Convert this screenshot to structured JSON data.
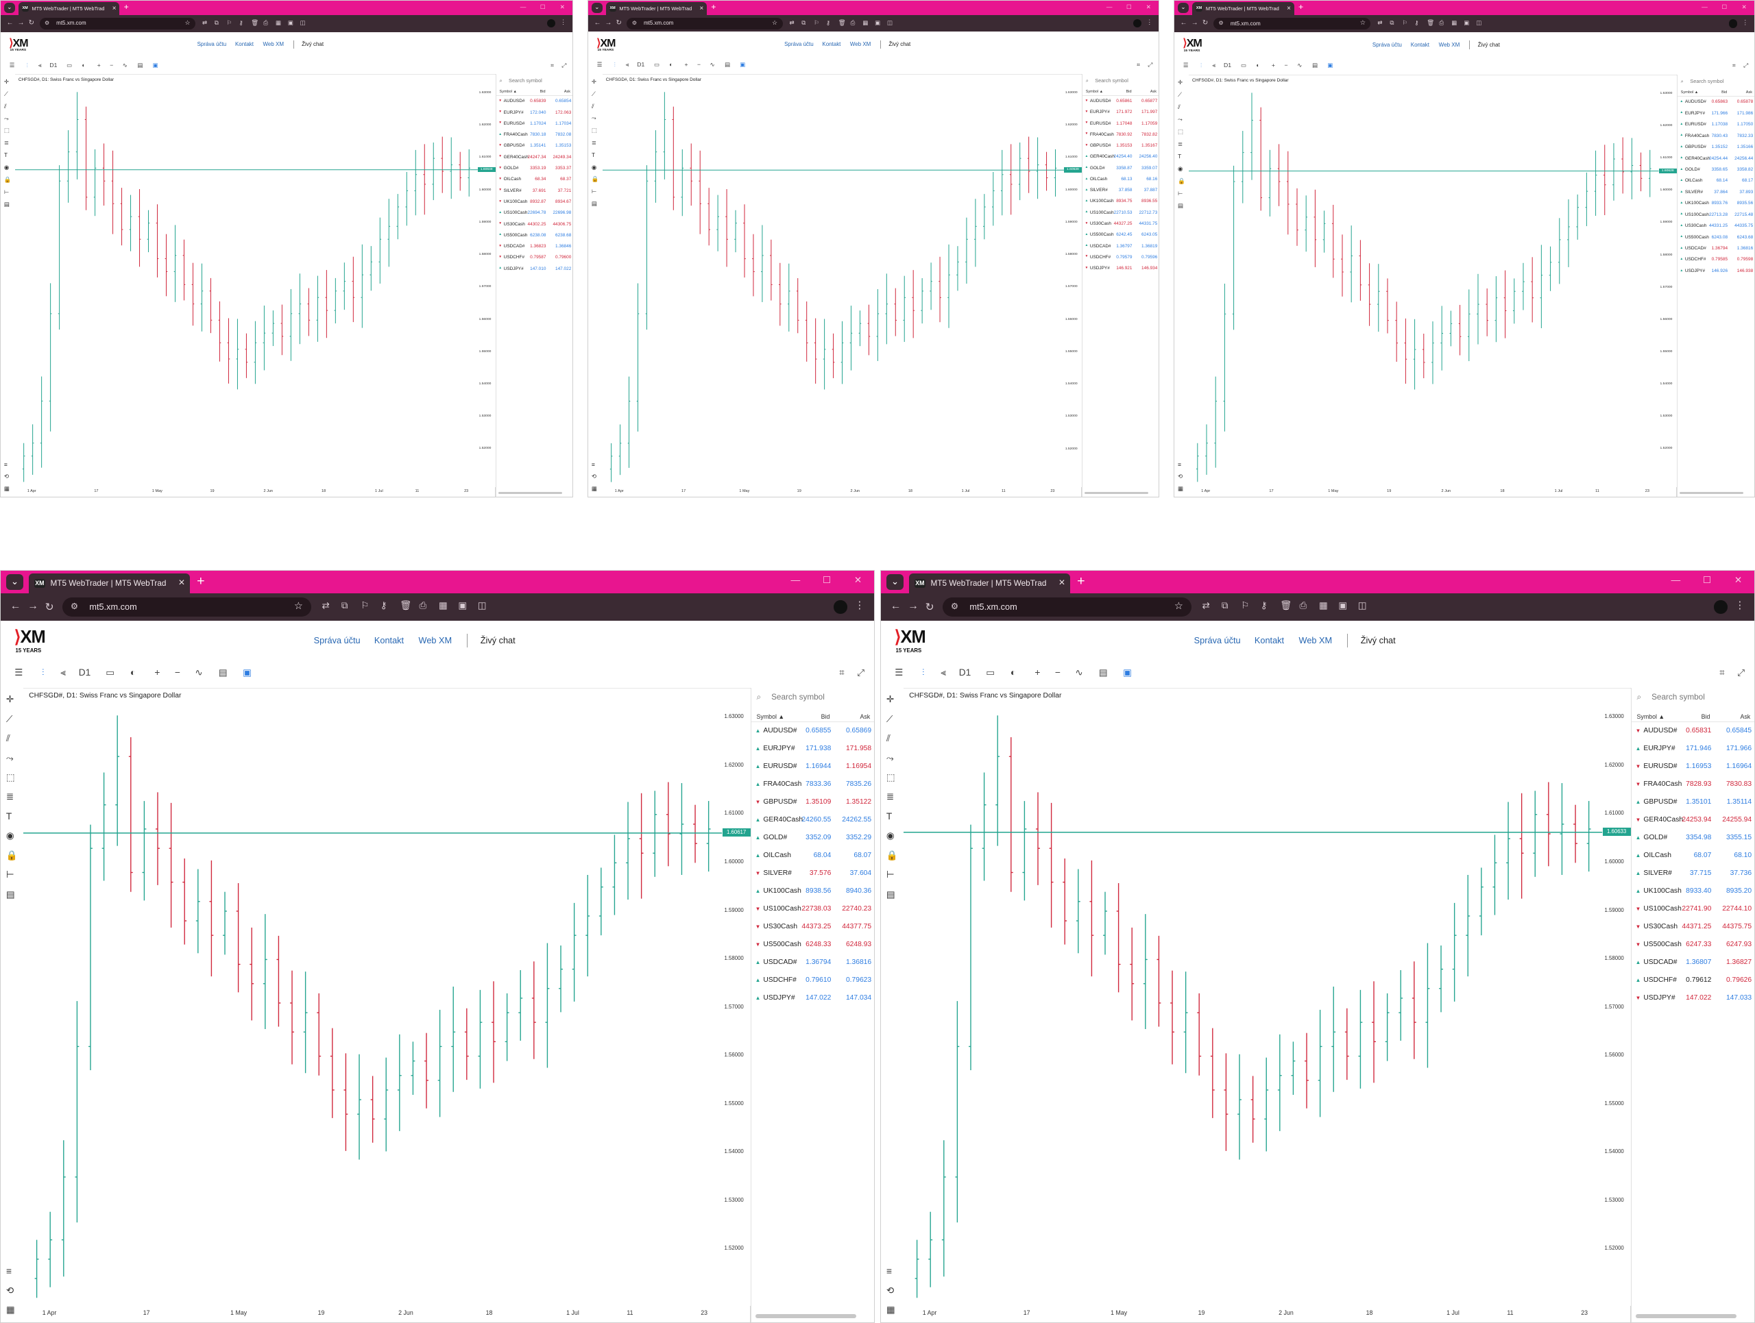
{
  "browser": {
    "tab_title": "MT5 WebTrader | MT5 WebTrader",
    "tab_title_short": "MT5 WebTrader | MT5 WebTrad",
    "favicon_text": "XM",
    "new_tab": "+",
    "url": "mt5.xm.com",
    "url_small": "mt5.xm.com",
    "close_tab": "×",
    "caret": "⌄"
  },
  "site": {
    "logo": "XM",
    "logo_sub": "15 YEARS",
    "links": [
      "Správa účtu",
      "Kontakt",
      "Web XM"
    ],
    "chat": "Živý chat"
  },
  "toolbar": {
    "timeframe": "D1",
    "plus": "+",
    "minus": "−"
  },
  "chart": {
    "title": "CHFSGD#, D1: Swiss Franc vs Singapore Dollar",
    "price_ticks": [
      "1.63000",
      "1.62000",
      "1.61000",
      "1.60000",
      "1.59000",
      "1.58000",
      "1.57000",
      "1.56000",
      "1.55000",
      "1.54000",
      "1.53000",
      "1.52000"
    ],
    "date_ticks": [
      "1 Apr",
      "17",
      "1 May",
      "19",
      "2 Jun",
      "18",
      "1 Jul",
      "11",
      "23"
    ],
    "line_color": "#23a48f",
    "up_color": "#23a48f",
    "down_color": "#d0263b"
  },
  "watchlist_header": {
    "search_placeholder": "Search symbol",
    "col_symbol": "Symbol ▲",
    "col_bid": "Bid",
    "col_ask": "Ask"
  },
  "panels": [
    {
      "current_price": "1.60649",
      "rows": [
        {
          "dir": "down",
          "symbol": "AUDUSD#",
          "bid": "0.65839",
          "ask": "0.65854",
          "bidc": "down",
          "askc": "up"
        },
        {
          "dir": "down",
          "symbol": "EURJPY#",
          "bid": "172.040",
          "ask": "172.063",
          "bidc": "up",
          "askc": "down"
        },
        {
          "dir": "down",
          "symbol": "EURUSD#",
          "bid": "1.17024",
          "ask": "1.17034",
          "bidc": "up",
          "askc": "up"
        },
        {
          "dir": "up",
          "symbol": "FRA40Cash",
          "bid": "7830.18",
          "ask": "7832.08",
          "bidc": "up",
          "askc": "up"
        },
        {
          "dir": "down",
          "symbol": "GBPUSD#",
          "bid": "1.35141",
          "ask": "1.35153",
          "bidc": "up",
          "askc": "up"
        },
        {
          "dir": "down",
          "symbol": "GER40Cash",
          "bid": "24247.34",
          "ask": "24249.34",
          "bidc": "down",
          "askc": "down"
        },
        {
          "dir": "down",
          "symbol": "GOLD#",
          "bid": "3353.19",
          "ask": "3353.37",
          "bidc": "down",
          "askc": "down"
        },
        {
          "dir": "down",
          "symbol": "OILCash",
          "bid": "68.34",
          "ask": "68.37",
          "bidc": "down",
          "askc": "down"
        },
        {
          "dir": "down",
          "symbol": "SILVER#",
          "bid": "37.691",
          "ask": "37.721",
          "bidc": "down",
          "askc": "down"
        },
        {
          "dir": "down",
          "symbol": "UK100Cash",
          "bid": "8932.87",
          "ask": "8934.67",
          "bidc": "down",
          "askc": "down"
        },
        {
          "dir": "up",
          "symbol": "US100Cash",
          "bid": "22694.78",
          "ask": "22696.98",
          "bidc": "up",
          "askc": "up"
        },
        {
          "dir": "down",
          "symbol": "US30Cash",
          "bid": "44302.25",
          "ask": "44306.75",
          "bidc": "down",
          "askc": "down"
        },
        {
          "dir": "up",
          "symbol": "US500Cash",
          "bid": "6238.08",
          "ask": "6238.68",
          "bidc": "up",
          "askc": "up"
        },
        {
          "dir": "down",
          "symbol": "USDCAD#",
          "bid": "1.36823",
          "ask": "1.36846",
          "bidc": "down",
          "askc": "up"
        },
        {
          "dir": "down",
          "symbol": "USDCHF#",
          "bid": "0.79587",
          "ask": "0.79600",
          "bidc": "down",
          "askc": "down"
        },
        {
          "dir": "up",
          "symbol": "USDJPY#",
          "bid": "147.010",
          "ask": "147.022",
          "bidc": "up",
          "askc": "up"
        }
      ]
    },
    {
      "current_price": "1.60639",
      "rows": [
        {
          "dir": "down",
          "symbol": "AUDUSD#",
          "bid": "0.65861",
          "ask": "0.65877",
          "bidc": "down",
          "askc": "down"
        },
        {
          "dir": "down",
          "symbol": "EURJPY#",
          "bid": "171.972",
          "ask": "171.997",
          "bidc": "down",
          "askc": "down"
        },
        {
          "dir": "down",
          "symbol": "EURUSD#",
          "bid": "1.17048",
          "ask": "1.17059",
          "bidc": "down",
          "askc": "down"
        },
        {
          "dir": "down",
          "symbol": "FRA40Cash",
          "bid": "7830.92",
          "ask": "7832.82",
          "bidc": "down",
          "askc": "down"
        },
        {
          "dir": "down",
          "symbol": "GBPUSD#",
          "bid": "1.35153",
          "ask": "1.35167",
          "bidc": "down",
          "askc": "down"
        },
        {
          "dir": "up",
          "symbol": "GER40Cash",
          "bid": "24254.40",
          "ask": "24256.40",
          "bidc": "up",
          "askc": "up"
        },
        {
          "dir": "up",
          "symbol": "GOLD#",
          "bid": "3358.87",
          "ask": "3359.07",
          "bidc": "up",
          "askc": "up"
        },
        {
          "dir": "up",
          "symbol": "OILCash",
          "bid": "68.13",
          "ask": "68.16",
          "bidc": "up",
          "askc": "up"
        },
        {
          "dir": "up",
          "symbol": "SILVER#",
          "bid": "37.858",
          "ask": "37.887",
          "bidc": "up",
          "askc": "up"
        },
        {
          "dir": "up",
          "symbol": "UK100Cash",
          "bid": "8934.75",
          "ask": "8936.55",
          "bidc": "down",
          "askc": "down"
        },
        {
          "dir": "up",
          "symbol": "US100Cash",
          "bid": "22710.53",
          "ask": "22712.73",
          "bidc": "up",
          "askc": "up"
        },
        {
          "dir": "down",
          "symbol": "US30Cash",
          "bid": "44327.25",
          "ask": "44331.75",
          "bidc": "down",
          "askc": "up"
        },
        {
          "dir": "up",
          "symbol": "US500Cash",
          "bid": "6242.45",
          "ask": "6243.05",
          "bidc": "up",
          "askc": "up"
        },
        {
          "dir": "up",
          "symbol": "USDCAD#",
          "bid": "1.36797",
          "ask": "1.36819",
          "bidc": "up",
          "askc": "up"
        },
        {
          "dir": "down",
          "symbol": "USDCHF#",
          "bid": "0.79579",
          "ask": "0.79596",
          "bidc": "up",
          "askc": "up"
        },
        {
          "dir": "down",
          "symbol": "USDJPY#",
          "bid": "146.921",
          "ask": "146.934",
          "bidc": "down",
          "askc": "down"
        }
      ]
    },
    {
      "current_price": "1.60628",
      "rows": [
        {
          "dir": "up",
          "symbol": "AUDUSD#",
          "bid": "0.65863",
          "ask": "0.65878",
          "bidc": "down",
          "askc": "down"
        },
        {
          "dir": "up",
          "symbol": "EURJPY#",
          "bid": "171.966",
          "ask": "171.986",
          "bidc": "up",
          "askc": "up"
        },
        {
          "dir": "up",
          "symbol": "EURUSD#",
          "bid": "1.17038",
          "ask": "1.17050",
          "bidc": "up",
          "askc": "up"
        },
        {
          "dir": "up",
          "symbol": "FRA40Cash",
          "bid": "7830.43",
          "ask": "7832.33",
          "bidc": "up",
          "askc": "up"
        },
        {
          "dir": "up",
          "symbol": "GBPUSD#",
          "bid": "1.35152",
          "ask": "1.35166",
          "bidc": "up",
          "askc": "up"
        },
        {
          "dir": "up",
          "symbol": "GER40Cash",
          "bid": "24254.44",
          "ask": "24256.44",
          "bidc": "up",
          "askc": "up"
        },
        {
          "dir": "up",
          "symbol": "GOLD#",
          "bid": "3358.65",
          "ask": "3358.82",
          "bidc": "up",
          "askc": "up"
        },
        {
          "dir": "up",
          "symbol": "OILCash",
          "bid": "68.14",
          "ask": "68.17",
          "bidc": "up",
          "askc": "up"
        },
        {
          "dir": "up",
          "symbol": "SILVER#",
          "bid": "37.864",
          "ask": "37.893",
          "bidc": "up",
          "askc": "up"
        },
        {
          "dir": "up",
          "symbol": "UK100Cash",
          "bid": "8933.76",
          "ask": "8935.56",
          "bidc": "up",
          "askc": "up"
        },
        {
          "dir": "up",
          "symbol": "US100Cash",
          "bid": "22713.28",
          "ask": "22715.48",
          "bidc": "up",
          "askc": "up"
        },
        {
          "dir": "up",
          "symbol": "US30Cash",
          "bid": "44331.25",
          "ask": "44335.75",
          "bidc": "up",
          "askc": "up"
        },
        {
          "dir": "up",
          "symbol": "US500Cash",
          "bid": "6243.08",
          "ask": "6243.68",
          "bidc": "up",
          "askc": "up"
        },
        {
          "dir": "up",
          "symbol": "USDCAD#",
          "bid": "1.36794",
          "ask": "1.36816",
          "bidc": "down",
          "askc": "up"
        },
        {
          "dir": "up",
          "symbol": "USDCHF#",
          "bid": "0.79585",
          "ask": "0.79598",
          "bidc": "down",
          "askc": "down"
        },
        {
          "dir": "up",
          "symbol": "USDJPY#",
          "bid": "146.926",
          "ask": "146.938",
          "bidc": "up",
          "askc": "down"
        }
      ]
    },
    {
      "current_price": "1.60617",
      "rows": [
        {
          "dir": "up",
          "symbol": "AUDUSD#",
          "bid": "0.65855",
          "ask": "0.65869",
          "bidc": "up",
          "askc": "up"
        },
        {
          "dir": "up",
          "symbol": "EURJPY#",
          "bid": "171.938",
          "ask": "171.958",
          "bidc": "up",
          "askc": "down"
        },
        {
          "dir": "up",
          "symbol": "EURUSD#",
          "bid": "1.16944",
          "ask": "1.16954",
          "bidc": "up",
          "askc": "down"
        },
        {
          "dir": "up",
          "symbol": "FRA40Cash",
          "bid": "7833.36",
          "ask": "7835.26",
          "bidc": "up",
          "askc": "up"
        },
        {
          "dir": "down",
          "symbol": "GBPUSD#",
          "bid": "1.35109",
          "ask": "1.35122",
          "bidc": "down",
          "askc": "down"
        },
        {
          "dir": "up",
          "symbol": "GER40Cash",
          "bid": "24260.55",
          "ask": "24262.55",
          "bidc": "up",
          "askc": "up"
        },
        {
          "dir": "up",
          "symbol": "GOLD#",
          "bid": "3352.09",
          "ask": "3352.29",
          "bidc": "up",
          "askc": "up"
        },
        {
          "dir": "up",
          "symbol": "OILCash",
          "bid": "68.04",
          "ask": "68.07",
          "bidc": "up",
          "askc": "up"
        },
        {
          "dir": "down",
          "symbol": "SILVER#",
          "bid": "37.576",
          "ask": "37.604",
          "bidc": "down",
          "askc": "up"
        },
        {
          "dir": "up",
          "symbol": "UK100Cash",
          "bid": "8938.56",
          "ask": "8940.36",
          "bidc": "up",
          "askc": "up"
        },
        {
          "dir": "down",
          "symbol": "US100Cash",
          "bid": "22738.03",
          "ask": "22740.23",
          "bidc": "down",
          "askc": "down"
        },
        {
          "dir": "down",
          "symbol": "US30Cash",
          "bid": "44373.25",
          "ask": "44377.75",
          "bidc": "down",
          "askc": "down"
        },
        {
          "dir": "down",
          "symbol": "US500Cash",
          "bid": "6248.33",
          "ask": "6248.93",
          "bidc": "down",
          "askc": "down"
        },
        {
          "dir": "up",
          "symbol": "USDCAD#",
          "bid": "1.36794",
          "ask": "1.36816",
          "bidc": "up",
          "askc": "up"
        },
        {
          "dir": "up",
          "symbol": "USDCHF#",
          "bid": "0.79610",
          "ask": "0.79623",
          "bidc": "up",
          "askc": "up"
        },
        {
          "dir": "up",
          "symbol": "USDJPY#",
          "bid": "147.022",
          "ask": "147.034",
          "bidc": "up",
          "askc": "up"
        }
      ]
    },
    {
      "current_price": "1.60633",
      "rows": [
        {
          "dir": "down",
          "symbol": "AUDUSD#",
          "bid": "0.65831",
          "ask": "0.65845",
          "bidc": "down",
          "askc": "up"
        },
        {
          "dir": "up",
          "symbol": "EURJPY#",
          "bid": "171.946",
          "ask": "171.966",
          "bidc": "up",
          "askc": "up"
        },
        {
          "dir": "down",
          "symbol": "EURUSD#",
          "bid": "1.16953",
          "ask": "1.16964",
          "bidc": "up",
          "askc": "up"
        },
        {
          "dir": "down",
          "symbol": "FRA40Cash",
          "bid": "7828.93",
          "ask": "7830.83",
          "bidc": "down",
          "askc": "down"
        },
        {
          "dir": "up",
          "symbol": "GBPUSD#",
          "bid": "1.35101",
          "ask": "1.35114",
          "bidc": "up",
          "askc": "up"
        },
        {
          "dir": "down",
          "symbol": "GER40Cash",
          "bid": "24253.94",
          "ask": "24255.94",
          "bidc": "down",
          "askc": "down"
        },
        {
          "dir": "up",
          "symbol": "GOLD#",
          "bid": "3354.98",
          "ask": "3355.15",
          "bidc": "up",
          "askc": "up"
        },
        {
          "dir": "up",
          "symbol": "OILCash",
          "bid": "68.07",
          "ask": "68.10",
          "bidc": "up",
          "askc": "up"
        },
        {
          "dir": "up",
          "symbol": "SILVER#",
          "bid": "37.715",
          "ask": "37.736",
          "bidc": "up",
          "askc": "up"
        },
        {
          "dir": "up",
          "symbol": "UK100Cash",
          "bid": "8933.40",
          "ask": "8935.20",
          "bidc": "up",
          "askc": "up"
        },
        {
          "dir": "down",
          "symbol": "US100Cash",
          "bid": "22741.90",
          "ask": "22744.10",
          "bidc": "down",
          "askc": "down"
        },
        {
          "dir": "down",
          "symbol": "US30Cash",
          "bid": "44371.25",
          "ask": "44375.75",
          "bidc": "down",
          "askc": "down"
        },
        {
          "dir": "down",
          "symbol": "US500Cash",
          "bid": "6247.33",
          "ask": "6247.93",
          "bidc": "down",
          "askc": "down"
        },
        {
          "dir": "up",
          "symbol": "USDCAD#",
          "bid": "1.36807",
          "ask": "1.36827",
          "bidc": "up",
          "askc": "down"
        },
        {
          "dir": "up",
          "symbol": "USDCHF#",
          "bid": "0.79612",
          "ask": "0.79626",
          "bidc": "neutral",
          "askc": "down"
        },
        {
          "dir": "down",
          "symbol": "USDJPY#",
          "bid": "147.022",
          "ask": "147.033",
          "bidc": "down",
          "askc": "up"
        }
      ]
    }
  ]
}
